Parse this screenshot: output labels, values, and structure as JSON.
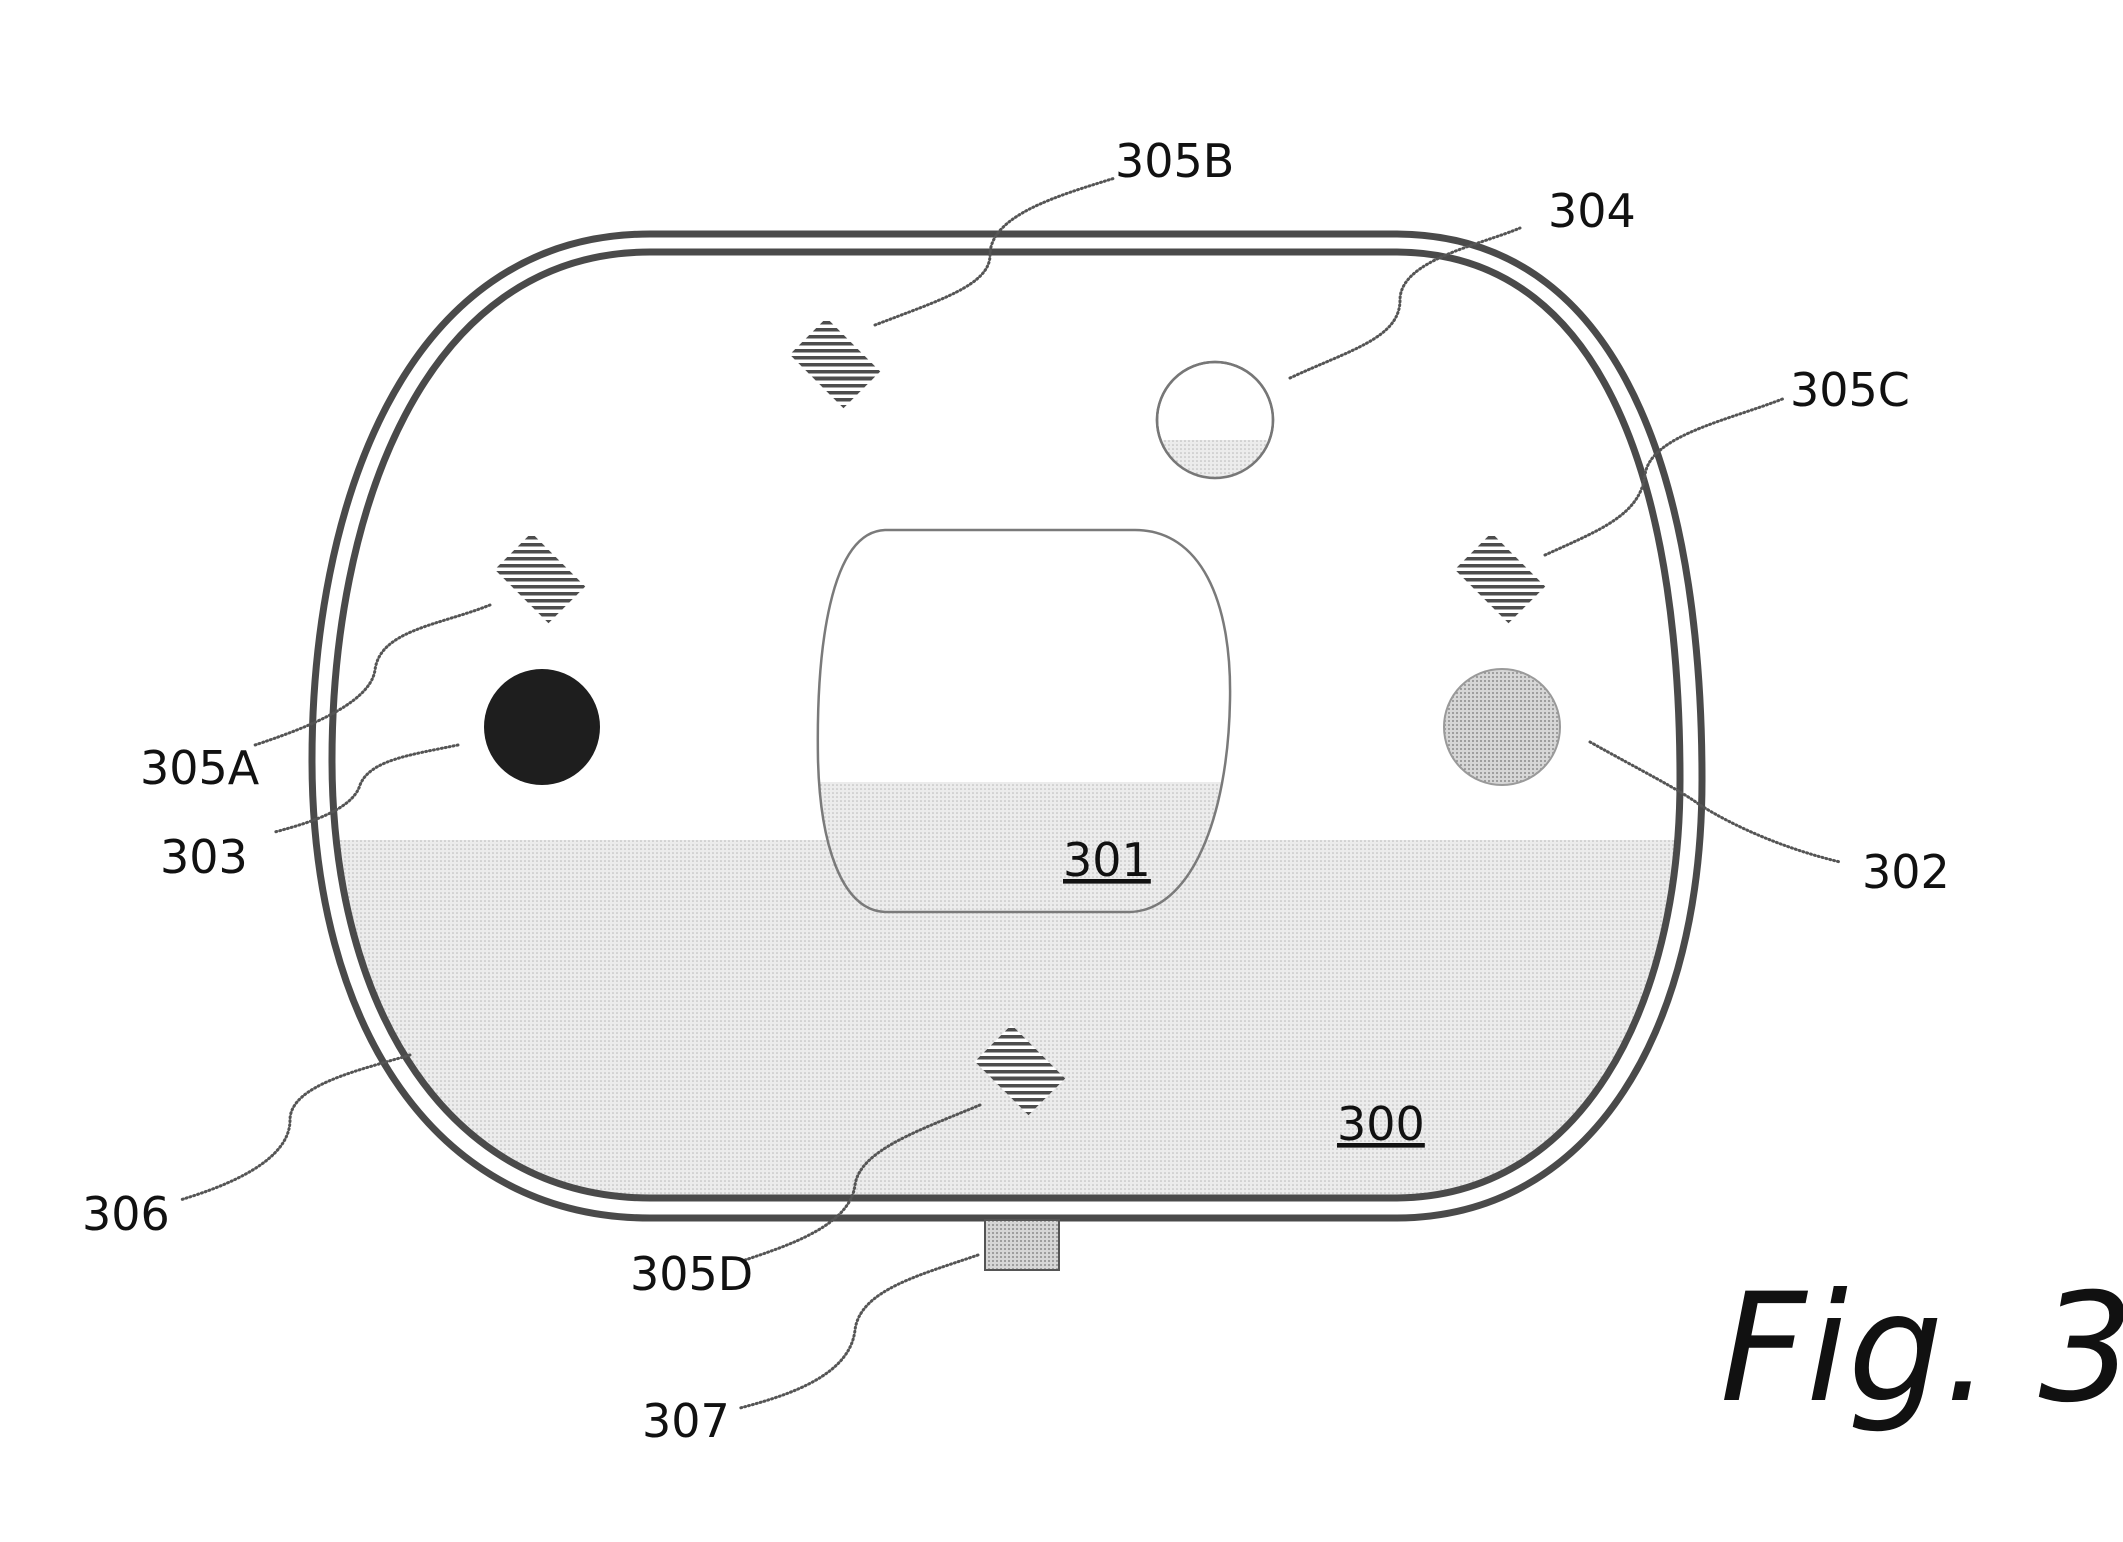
{
  "figure": {
    "caption": "Fig. 3",
    "labels": {
      "device_body": "300",
      "center_window": "301",
      "right_dot": "302",
      "left_dot": "303",
      "top_circle": "304",
      "marker_a": "305A",
      "marker_b": "305B",
      "marker_c": "305C",
      "marker_d": "305D",
      "outer_rim": "306",
      "bottom_tab": "307"
    }
  },
  "colors": {
    "outline": "#4a4a4a",
    "hatch": "#555555",
    "shade_light": "#e6e6e6",
    "dot_dark": "#1e1e1e",
    "dot_medium": "#cfcfcf"
  }
}
